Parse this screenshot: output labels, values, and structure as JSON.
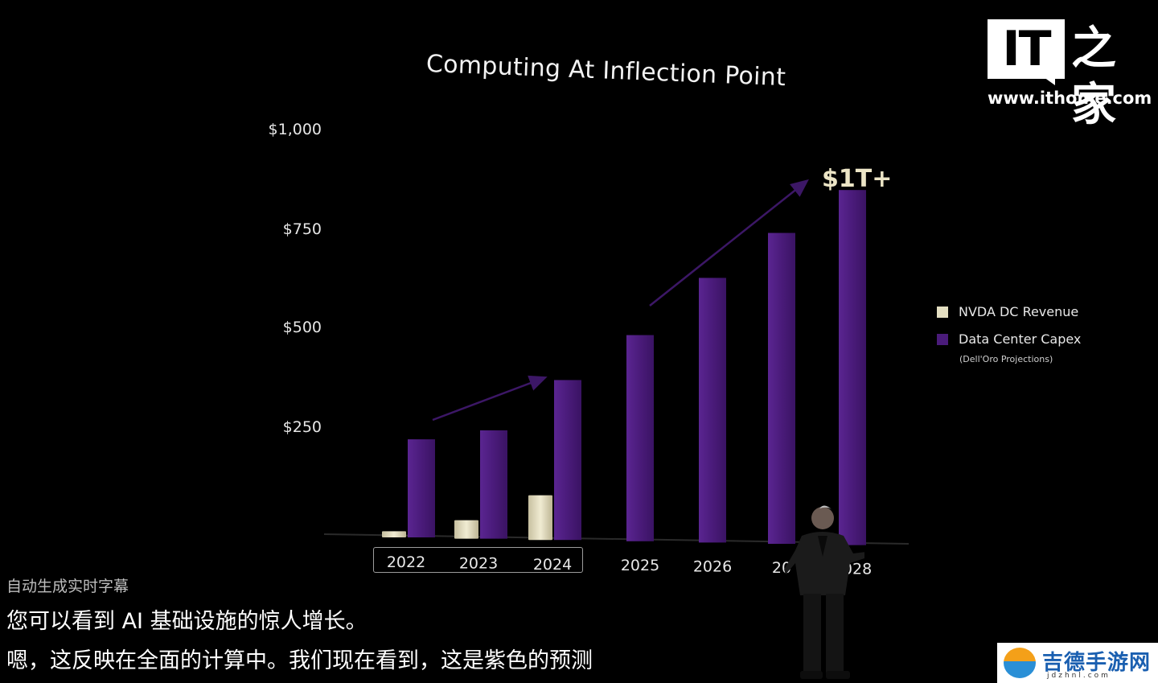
{
  "brand": {
    "logo_main": "IT",
    "logo_cn": "之家",
    "url": "www.ithome.com"
  },
  "chart_data": {
    "type": "bar",
    "title": "Computing At Inflection Point",
    "categories": [
      "2022",
      "2023",
      "2024",
      "2025",
      "2026",
      "2027",
      "2028"
    ],
    "category_labels": [
      "2022",
      "2023",
      "2024",
      "2025",
      "2026",
      "20",
      "2028"
    ],
    "yticks": [
      "$1,000",
      "$750",
      "$500",
      "$250"
    ],
    "ytick_values": [
      1000,
      750,
      500,
      250
    ],
    "ylim": [
      0,
      1000
    ],
    "series": [
      {
        "name": "NVDA DC Revenue",
        "color": "#e4dfc2",
        "values": [
          15,
          42,
          103,
          null,
          null,
          null,
          null
        ]
      },
      {
        "name": "Data Center Capex",
        "note": "(Dell'Oro Projections)",
        "color": "#4a1b7a",
        "values": [
          240,
          262,
          385,
          495,
          635,
          745,
          850
        ]
      }
    ],
    "annotation": "$1T+",
    "highlighted_categories": [
      "2022",
      "2023",
      "2024"
    ],
    "legend_position": "right",
    "grid": false
  },
  "captions": {
    "header": "自动生成实时字幕",
    "line1": "您可以看到 AI 基础设施的惊人增长。",
    "line2": "嗯，这反映在全面的计算中。我们现在看到，这是紫色的预测"
  },
  "watermark": {
    "name": "吉德手游网",
    "domain": "jdzhnl.com"
  }
}
